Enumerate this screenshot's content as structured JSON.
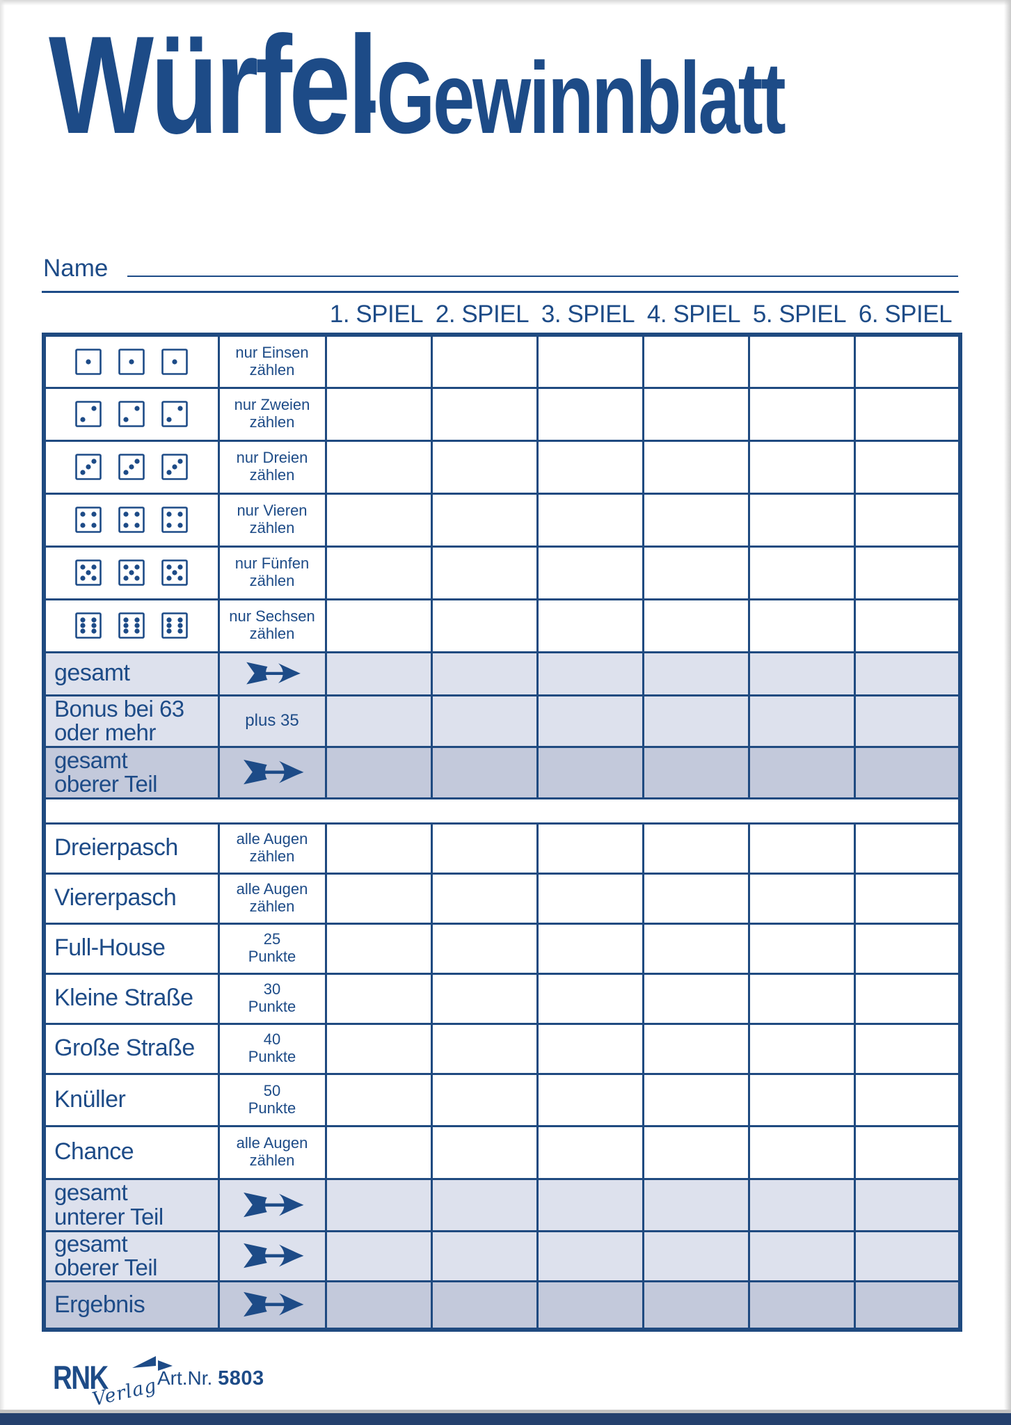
{
  "title": {
    "part1": "Würfel",
    "part2": "-Gewinnblatt"
  },
  "name_label": "Name",
  "game_headers": [
    "1. SPIEL",
    "2. SPIEL",
    "3. SPIEL",
    "4. SPIEL",
    "5. SPIEL",
    "6. SPIEL"
  ],
  "colors": {
    "navy": "#1d4b87",
    "row_light": "#dde1ed",
    "row_dark": "#c3c9db",
    "bottom_bar": "#24406d"
  },
  "table": {
    "rows": [
      {
        "type": "dice",
        "die": 1,
        "desc": [
          "nur Einsen",
          "zählen"
        ]
      },
      {
        "type": "dice",
        "die": 2,
        "desc": [
          "nur Zweien",
          "zählen"
        ]
      },
      {
        "type": "dice",
        "die": 3,
        "desc": [
          "nur Dreien",
          "zählen"
        ]
      },
      {
        "type": "dice",
        "die": 4,
        "desc": [
          "nur Vieren",
          "zählen"
        ]
      },
      {
        "type": "dice",
        "die": 5,
        "desc": [
          "nur Fünfen",
          "zählen"
        ]
      },
      {
        "type": "dice",
        "die": 6,
        "desc": [
          "nur Sechsen",
          "zählen"
        ]
      },
      {
        "type": "summary",
        "label": [
          "gesamt"
        ],
        "mid": "arrow",
        "shade": "light"
      },
      {
        "type": "summary",
        "label": [
          "Bonus bei 63",
          "oder mehr"
        ],
        "mid": "plus 35",
        "shade": "light"
      },
      {
        "type": "summary",
        "label": [
          "gesamt",
          "oberer Teil"
        ],
        "mid": "arrow",
        "shade": "dark"
      },
      {
        "type": "gap"
      },
      {
        "type": "category",
        "label": "Dreierpasch",
        "desc": [
          "alle Augen",
          "zählen"
        ]
      },
      {
        "type": "category",
        "label": "Viererpasch",
        "desc": [
          "alle Augen",
          "zählen"
        ]
      },
      {
        "type": "category",
        "label": "Full-House",
        "desc": [
          "25",
          "Punkte"
        ]
      },
      {
        "type": "category",
        "label": "Kleine Straße",
        "desc": [
          "30",
          "Punkte"
        ]
      },
      {
        "type": "category",
        "label": "Große Straße",
        "desc": [
          "40",
          "Punkte"
        ]
      },
      {
        "type": "category",
        "label": "Knüller",
        "desc": [
          "50",
          "Punkte"
        ]
      },
      {
        "type": "category",
        "label": "Chance",
        "desc": [
          "alle Augen",
          "zählen"
        ]
      },
      {
        "type": "summary",
        "label": [
          "gesamt",
          "unterer Teil"
        ],
        "mid": "arrow",
        "shade": "light"
      },
      {
        "type": "summary",
        "label": [
          "gesamt",
          "oberer Teil"
        ],
        "mid": "arrow",
        "shade": "light"
      },
      {
        "type": "summary",
        "label": [
          "Ergebnis"
        ],
        "mid": "arrow",
        "shade": "dark"
      }
    ]
  },
  "footer": {
    "brand": "RNK",
    "brand_sub": "Verlag",
    "art_label": "Art.Nr.",
    "art_number": "5803"
  }
}
